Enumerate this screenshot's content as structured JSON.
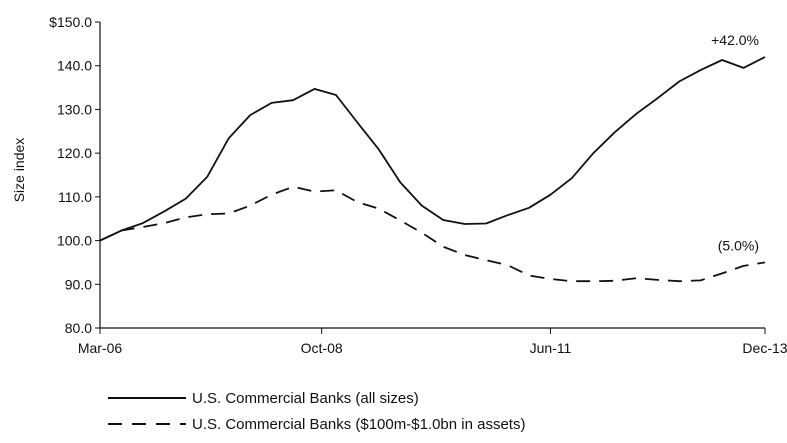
{
  "chart_data": {
    "type": "line",
    "title": "",
    "xlabel": "",
    "ylabel": "Size index",
    "ylim": [
      80,
      150
    ],
    "y_ticks": [
      {
        "value": 80,
        "label": "80.0"
      },
      {
        "value": 90,
        "label": "90.0"
      },
      {
        "value": 100,
        "label": "100.0"
      },
      {
        "value": 110,
        "label": "110.0"
      },
      {
        "value": 120,
        "label": "120.0"
      },
      {
        "value": 130,
        "label": "130.0"
      },
      {
        "value": 140,
        "label": "140.0"
      },
      {
        "value": 150,
        "label": "$150.0"
      }
    ],
    "x_range": [
      "2006-03",
      "2013-12"
    ],
    "x_ticks": [
      {
        "date": "2006-03",
        "label": "Mar-06"
      },
      {
        "date": "2008-10",
        "label": "Oct-08"
      },
      {
        "date": "2011-06",
        "label": "Jun-11"
      },
      {
        "date": "2013-12",
        "label": "Dec-13"
      }
    ],
    "grid": false,
    "legend_position": "bottom-left",
    "series": [
      {
        "name": "U.S. Commercial Banks (all sizes)",
        "style": "solid",
        "color": "#111111",
        "end_label": "+42.0%",
        "points": [
          [
            "2006-03",
            100.0
          ],
          [
            "2006-06",
            102.3
          ],
          [
            "2006-09",
            104.0
          ],
          [
            "2006-12",
            106.7
          ],
          [
            "2007-03",
            109.6
          ],
          [
            "2007-06",
            114.6
          ],
          [
            "2007-09",
            123.4
          ],
          [
            "2007-12",
            128.7
          ],
          [
            "2008-03",
            131.5
          ],
          [
            "2008-06",
            132.1
          ],
          [
            "2008-09",
            134.7
          ],
          [
            "2008-12",
            133.3
          ],
          [
            "2009-03",
            127.0
          ],
          [
            "2009-06",
            120.8
          ],
          [
            "2009-09",
            113.3
          ],
          [
            "2009-12",
            108.0
          ],
          [
            "2010-03",
            104.7
          ],
          [
            "2010-06",
            103.8
          ],
          [
            "2010-09",
            103.9
          ],
          [
            "2010-12",
            105.8
          ],
          [
            "2011-03",
            107.5
          ],
          [
            "2011-06",
            110.5
          ],
          [
            "2011-09",
            114.3
          ],
          [
            "2011-12",
            120.0
          ],
          [
            "2012-03",
            124.8
          ],
          [
            "2012-06",
            129.0
          ],
          [
            "2012-09",
            132.6
          ],
          [
            "2012-12",
            136.4
          ],
          [
            "2013-03",
            139.0
          ],
          [
            "2013-06",
            141.3
          ],
          [
            "2013-09",
            139.5
          ],
          [
            "2013-12",
            142.0
          ]
        ]
      },
      {
        "name": "U.S. Commercial Banks ($100m-$1.0bn in assets)",
        "style": "dashed",
        "color": "#111111",
        "end_label": "(5.0%)",
        "points": [
          [
            "2006-03",
            100.0
          ],
          [
            "2006-06",
            102.3
          ],
          [
            "2006-09",
            103.1
          ],
          [
            "2006-12",
            104.0
          ],
          [
            "2007-03",
            105.3
          ],
          [
            "2007-06",
            106.0
          ],
          [
            "2007-09",
            106.2
          ],
          [
            "2007-12",
            108.0
          ],
          [
            "2008-03",
            110.5
          ],
          [
            "2008-06",
            112.3
          ],
          [
            "2008-09",
            111.2
          ],
          [
            "2008-12",
            111.5
          ],
          [
            "2009-03",
            108.8
          ],
          [
            "2009-06",
            107.3
          ],
          [
            "2009-09",
            104.6
          ],
          [
            "2009-12",
            101.8
          ],
          [
            "2010-03",
            98.6
          ],
          [
            "2010-06",
            96.7
          ],
          [
            "2010-09",
            95.5
          ],
          [
            "2010-12",
            94.4
          ],
          [
            "2011-03",
            92.0
          ],
          [
            "2011-06",
            91.2
          ],
          [
            "2011-09",
            90.7
          ],
          [
            "2011-12",
            90.7
          ],
          [
            "2012-03",
            90.8
          ],
          [
            "2012-06",
            91.4
          ],
          [
            "2012-09",
            91.0
          ],
          [
            "2012-12",
            90.7
          ],
          [
            "2013-03",
            90.9
          ],
          [
            "2013-06",
            92.5
          ],
          [
            "2013-09",
            94.2
          ],
          [
            "2013-12",
            95.0
          ]
        ]
      }
    ]
  }
}
